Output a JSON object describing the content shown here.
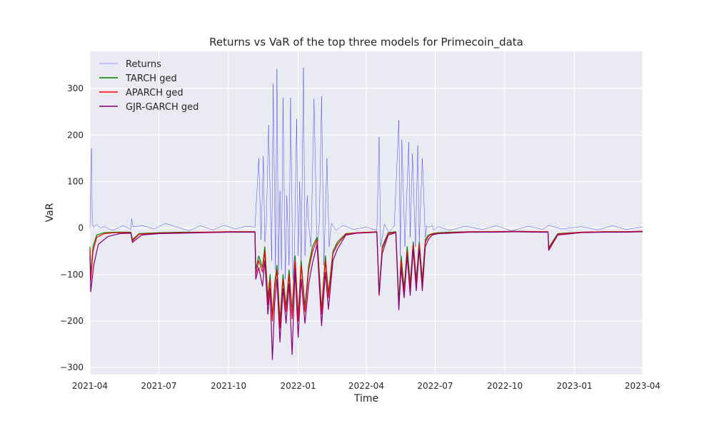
{
  "chart_data": {
    "type": "line",
    "title": "Returns vs VaR of the top three models for Primecoin_data",
    "xlabel": "Time",
    "ylabel": "VaR",
    "xlim": [
      "2021-04-01",
      "2023-04-01"
    ],
    "ylim": [
      -315,
      380
    ],
    "x_ticks": [
      "2021-04",
      "2021-07",
      "2021-10",
      "2022-01",
      "2022-04",
      "2022-07",
      "2022-10",
      "2023-01",
      "2023-04"
    ],
    "y_ticks": [
      300,
      200,
      100,
      0,
      -100,
      -200,
      -300
    ],
    "grid": true,
    "legend_position": "top-left",
    "colors": {
      "plot_background": "#eaeaf2",
      "grid": "#ffffff",
      "returns": "#0000ff",
      "tarch": "#008000",
      "aparch": "#ff0000",
      "gjr": "#800080"
    },
    "series": [
      {
        "name": "Returns",
        "color": "#0000ff",
        "x": [
          "2021-04-01",
          "2021-04-02",
          "2021-04-03",
          "2021-04-04",
          "2021-04-06",
          "2021-04-10",
          "2021-04-15",
          "2021-04-20",
          "2021-05-01",
          "2021-05-15",
          "2021-05-25",
          "2021-05-26",
          "2021-05-28",
          "2021-06-10",
          "2021-06-25",
          "2021-07-10",
          "2021-07-25",
          "2021-08-10",
          "2021-08-25",
          "2021-09-10",
          "2021-09-25",
          "2021-10-10",
          "2021-10-25",
          "2021-11-05",
          "2021-11-10",
          "2021-11-13",
          "2021-11-16",
          "2021-11-18",
          "2021-11-20",
          "2021-11-23",
          "2021-11-27",
          "2021-11-29",
          "2021-12-02",
          "2021-12-04",
          "2021-12-06",
          "2021-12-08",
          "2021-12-10",
          "2021-12-12",
          "2021-12-15",
          "2021-12-17",
          "2021-12-20",
          "2021-12-22",
          "2021-12-25",
          "2021-12-27",
          "2021-12-30",
          "2022-01-01",
          "2022-01-03",
          "2022-01-05",
          "2022-01-08",
          "2022-01-10",
          "2022-01-13",
          "2022-01-15",
          "2022-01-18",
          "2022-01-22",
          "2022-01-26",
          "2022-01-29",
          "2022-02-01",
          "2022-02-04",
          "2022-02-08",
          "2022-02-11",
          "2022-02-14",
          "2022-02-16",
          "2022-02-20",
          "2022-03-01",
          "2022-03-15",
          "2022-04-01",
          "2022-04-15",
          "2022-04-18",
          "2022-04-20",
          "2022-04-25",
          "2022-05-01",
          "2022-05-08",
          "2022-05-14",
          "2022-05-16",
          "2022-05-18",
          "2022-05-22",
          "2022-05-27",
          "2022-05-29",
          "2022-06-01",
          "2022-06-05",
          "2022-06-08",
          "2022-06-10",
          "2022-06-14",
          "2022-06-18",
          "2022-06-20",
          "2022-06-22",
          "2022-06-25",
          "2022-06-27",
          "2022-06-29",
          "2022-07-05",
          "2022-07-20",
          "2022-08-10",
          "2022-09-01",
          "2022-09-20",
          "2022-10-10",
          "2022-11-01",
          "2022-11-20",
          "2022-11-28",
          "2022-12-15",
          "2023-01-10",
          "2023-02-01",
          "2023-02-20",
          "2023-03-10",
          "2023-04-01"
        ],
        "values": [
          0,
          120,
          172,
          10,
          2,
          8,
          0,
          3,
          -5,
          5,
          -3,
          20,
          3,
          5,
          -2,
          10,
          2,
          -6,
          5,
          -4,
          6,
          -2,
          4,
          2,
          150,
          -25,
          155,
          -30,
          10,
          222,
          -70,
          310,
          -90,
          342,
          -100,
          80,
          -90,
          280,
          -110,
          70,
          -80,
          280,
          -110,
          -60,
          235,
          -60,
          100,
          -80,
          345,
          -60,
          70,
          5,
          -40,
          278,
          -50,
          15,
          283,
          -80,
          150,
          -40,
          10,
          5,
          -5,
          6,
          -3,
          2,
          -5,
          196,
          -40,
          8,
          -10,
          5,
          232,
          -60,
          190,
          -40,
          185,
          -20,
          160,
          -40,
          178,
          -30,
          150,
          -20,
          5,
          2,
          3,
          6,
          -4,
          3,
          -5,
          4,
          -3,
          5,
          -6,
          4,
          -3,
          6,
          -2,
          3,
          -4,
          5,
          -3,
          2
        ]
      },
      {
        "name": "TARCH ged",
        "color": "#008000",
        "x": [
          "2021-04-01",
          "2021-04-02",
          "2021-04-05",
          "2021-04-10",
          "2021-04-20",
          "2021-05-05",
          "2021-05-25",
          "2021-05-27",
          "2021-06-05",
          "2021-07-01",
          "2021-08-01",
          "2021-09-01",
          "2021-10-01",
          "2021-11-05",
          "2021-11-06",
          "2021-11-10",
          "2021-11-15",
          "2021-11-18",
          "2021-11-22",
          "2021-11-25",
          "2021-11-28",
          "2021-12-01",
          "2021-12-04",
          "2021-12-08",
          "2021-12-12",
          "2021-12-16",
          "2021-12-20",
          "2021-12-24",
          "2021-12-28",
          "2022-01-01",
          "2022-01-05",
          "2022-01-10",
          "2022-01-15",
          "2022-01-20",
          "2022-01-26",
          "2022-02-01",
          "2022-02-06",
          "2022-02-10",
          "2022-02-16",
          "2022-02-22",
          "2022-03-05",
          "2022-03-20",
          "2022-04-05",
          "2022-04-15",
          "2022-04-18",
          "2022-04-22",
          "2022-04-30",
          "2022-05-10",
          "2022-05-14",
          "2022-05-17",
          "2022-05-21",
          "2022-05-25",
          "2022-05-29",
          "2022-06-02",
          "2022-06-06",
          "2022-06-10",
          "2022-06-14",
          "2022-06-18",
          "2022-06-22",
          "2022-06-27",
          "2022-07-05",
          "2022-07-20",
          "2022-08-15",
          "2022-09-15",
          "2022-10-15",
          "2022-11-15",
          "2022-11-27",
          "2022-11-28",
          "2022-12-10",
          "2023-01-10",
          "2023-02-10",
          "2023-03-10",
          "2023-04-01"
        ],
        "values": [
          -40,
          -105,
          -40,
          -15,
          -10,
          -9,
          -9,
          -25,
          -12,
          -10,
          -9,
          -9,
          -8,
          -8,
          -90,
          -60,
          -85,
          -40,
          -150,
          -100,
          -190,
          -120,
          -80,
          -200,
          -100,
          -170,
          -90,
          -180,
          -60,
          -190,
          -70,
          -170,
          -80,
          -40,
          -20,
          -175,
          -60,
          -140,
          -50,
          -30,
          -12,
          -10,
          -9,
          -8,
          -140,
          -40,
          -10,
          -8,
          -160,
          -60,
          -130,
          -40,
          -120,
          -30,
          -110,
          -30,
          -110,
          -25,
          -15,
          -12,
          -10,
          -9,
          -8,
          -8,
          -7,
          -8,
          -8,
          -42,
          -12,
          -9,
          -8,
          -8,
          -7
        ]
      },
      {
        "name": "APARCH ged",
        "color": "#ff0000",
        "x": [
          "2021-04-01",
          "2021-04-02",
          "2021-04-05",
          "2021-04-10",
          "2021-04-20",
          "2021-05-05",
          "2021-05-25",
          "2021-05-27",
          "2021-06-05",
          "2021-07-01",
          "2021-08-01",
          "2021-09-01",
          "2021-10-01",
          "2021-11-05",
          "2021-11-06",
          "2021-11-10",
          "2021-11-15",
          "2021-11-18",
          "2021-11-22",
          "2021-11-25",
          "2021-11-28",
          "2021-12-01",
          "2021-12-04",
          "2021-12-08",
          "2021-12-12",
          "2021-12-16",
          "2021-12-20",
          "2021-12-24",
          "2021-12-28",
          "2022-01-01",
          "2022-01-05",
          "2022-01-10",
          "2022-01-15",
          "2022-01-20",
          "2022-01-26",
          "2022-02-01",
          "2022-02-06",
          "2022-02-10",
          "2022-02-16",
          "2022-02-22",
          "2022-03-05",
          "2022-03-20",
          "2022-04-05",
          "2022-04-15",
          "2022-04-18",
          "2022-04-22",
          "2022-04-30",
          "2022-05-10",
          "2022-05-14",
          "2022-05-17",
          "2022-05-21",
          "2022-05-25",
          "2022-05-29",
          "2022-06-02",
          "2022-06-06",
          "2022-06-10",
          "2022-06-14",
          "2022-06-18",
          "2022-06-22",
          "2022-06-27",
          "2022-07-05",
          "2022-07-20",
          "2022-08-15",
          "2022-09-15",
          "2022-10-15",
          "2022-11-15",
          "2022-11-27",
          "2022-11-28",
          "2022-12-10",
          "2023-01-10",
          "2023-02-10",
          "2023-03-10",
          "2023-04-01"
        ],
        "values": [
          -45,
          -115,
          -50,
          -20,
          -12,
          -10,
          -10,
          -28,
          -13,
          -11,
          -10,
          -9,
          -8,
          -8,
          -100,
          -70,
          -95,
          -50,
          -165,
          -110,
          -200,
          -130,
          -90,
          -215,
          -110,
          -180,
          -100,
          -195,
          -70,
          -200,
          -80,
          -180,
          -90,
          -50,
          -25,
          -185,
          -70,
          -150,
          -55,
          -35,
          -13,
          -10,
          -9,
          -8,
          -145,
          -45,
          -12,
          -9,
          -170,
          -70,
          -140,
          -50,
          -130,
          -35,
          -120,
          -35,
          -120,
          -30,
          -18,
          -13,
          -11,
          -10,
          -8,
          -8,
          -7,
          -8,
          -8,
          -45,
          -13,
          -9,
          -8,
          -8,
          -7
        ]
      },
      {
        "name": "GJR-GARCH ged",
        "color": "#800080",
        "x": [
          "2021-04-01",
          "2021-04-02",
          "2021-04-06",
          "2021-04-12",
          "2021-04-25",
          "2021-05-10",
          "2021-05-25",
          "2021-05-27",
          "2021-06-08",
          "2021-07-01",
          "2021-08-01",
          "2021-09-01",
          "2021-10-01",
          "2021-11-05",
          "2021-11-06",
          "2021-11-10",
          "2021-11-15",
          "2021-11-18",
          "2021-11-22",
          "2021-11-25",
          "2021-11-28",
          "2021-12-01",
          "2021-12-04",
          "2021-12-08",
          "2021-12-12",
          "2021-12-16",
          "2021-12-20",
          "2021-12-24",
          "2021-12-28",
          "2022-01-01",
          "2022-01-05",
          "2022-01-10",
          "2022-01-15",
          "2022-01-20",
          "2022-01-26",
          "2022-02-01",
          "2022-02-06",
          "2022-02-10",
          "2022-02-16",
          "2022-02-22",
          "2022-03-05",
          "2022-03-20",
          "2022-04-05",
          "2022-04-15",
          "2022-04-18",
          "2022-04-22",
          "2022-04-30",
          "2022-05-10",
          "2022-05-14",
          "2022-05-17",
          "2022-05-21",
          "2022-05-25",
          "2022-05-29",
          "2022-06-02",
          "2022-06-06",
          "2022-06-10",
          "2022-06-14",
          "2022-06-18",
          "2022-06-22",
          "2022-06-27",
          "2022-07-05",
          "2022-07-20",
          "2022-08-15",
          "2022-09-15",
          "2022-10-15",
          "2022-11-15",
          "2022-11-27",
          "2022-11-28",
          "2022-12-10",
          "2023-01-10",
          "2023-02-10",
          "2023-03-10",
          "2023-04-01"
        ],
        "values": [
          -60,
          -137,
          -80,
          -35,
          -18,
          -12,
          -11,
          -31,
          -15,
          -12,
          -11,
          -10,
          -9,
          -9,
          -110,
          -85,
          -125,
          -70,
          -185,
          -130,
          -283,
          -160,
          -110,
          -245,
          -130,
          -205,
          -120,
          -272,
          -90,
          -235,
          -110,
          -205,
          -120,
          -75,
          -35,
          -210,
          -95,
          -175,
          -70,
          -45,
          -15,
          -11,
          -10,
          -9,
          -143,
          -55,
          -15,
          -10,
          -176,
          -85,
          -150,
          -60,
          -145,
          -45,
          -135,
          -45,
          -135,
          -40,
          -25,
          -15,
          -12,
          -11,
          -9,
          -9,
          -8,
          -9,
          -9,
          -48,
          -15,
          -10,
          -9,
          -9,
          -8
        ]
      }
    ]
  }
}
